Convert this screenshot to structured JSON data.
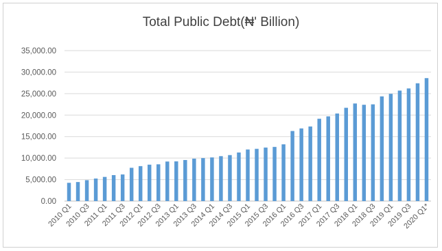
{
  "chart_data": {
    "type": "bar",
    "title": "Total Public Debt(₦' Billion)",
    "xlabel": "",
    "ylabel": "",
    "ylim": [
      0,
      35000
    ],
    "y_ticks": [
      "0.00",
      "5,000.00",
      "10,000.00",
      "15,000.00",
      "20,000.00",
      "25,000.00",
      "30,000.00",
      "35,000.00"
    ],
    "grid": true,
    "bar_color": "#5b9bd5",
    "categories": [
      "2010 Q1",
      "2010 Q2",
      "2010 Q3",
      "2010 Q4",
      "2011 Q1",
      "2011 Q2",
      "2011 Q3",
      "2011 Q4",
      "2012 Q1",
      "2012 Q2",
      "2012 Q3",
      "2012 Q4",
      "2013 Q1",
      "2013 Q2",
      "2013 Q3",
      "2013 Q4",
      "2014 Q1",
      "2014 Q2",
      "2014 Q3",
      "2014 Q4",
      "2015 Q1",
      "2015 Q2",
      "2015 Q3",
      "2015 Q4",
      "2016 Q1",
      "2016 Q2",
      "2016 Q3",
      "2016 Q4",
      "2017 Q1",
      "2017 Q2",
      "2017 Q3",
      "2017 Q4",
      "2018 Q1",
      "2018 Q2",
      "2018 Q3",
      "2018 Q4",
      "2019 Q1",
      "2019 Q2",
      "2019 Q3",
      "2019 Q4",
      "2020 Q1*"
    ],
    "visible_x_labels": [
      "2010 Q1",
      "2010 Q3",
      "2011 Q1",
      "2011 Q3",
      "2012 Q1",
      "2012 Q3",
      "2013 Q1",
      "2013 Q3",
      "2014 Q1",
      "2014 Q3",
      "2015 Q1",
      "2015 Q3",
      "2016 Q1",
      "2016 Q3",
      "2017 Q1",
      "2017 Q3",
      "2018 Q1",
      "2018 Q3",
      "2019 Q1",
      "2019 Q3",
      "2020 Q1*"
    ],
    "values": [
      4250,
      4430,
      4860,
      5240,
      5620,
      6040,
      6190,
      7740,
      8130,
      8470,
      8550,
      9200,
      9240,
      9550,
      9870,
      10000,
      10150,
      10450,
      10700,
      11300,
      12000,
      12150,
      12450,
      12600,
      13200,
      16300,
      16900,
      17350,
      19150,
      19700,
      20370,
      21700,
      22700,
      22400,
      22500,
      24350,
      24950,
      25700,
      26200,
      27400,
      28600
    ]
  }
}
